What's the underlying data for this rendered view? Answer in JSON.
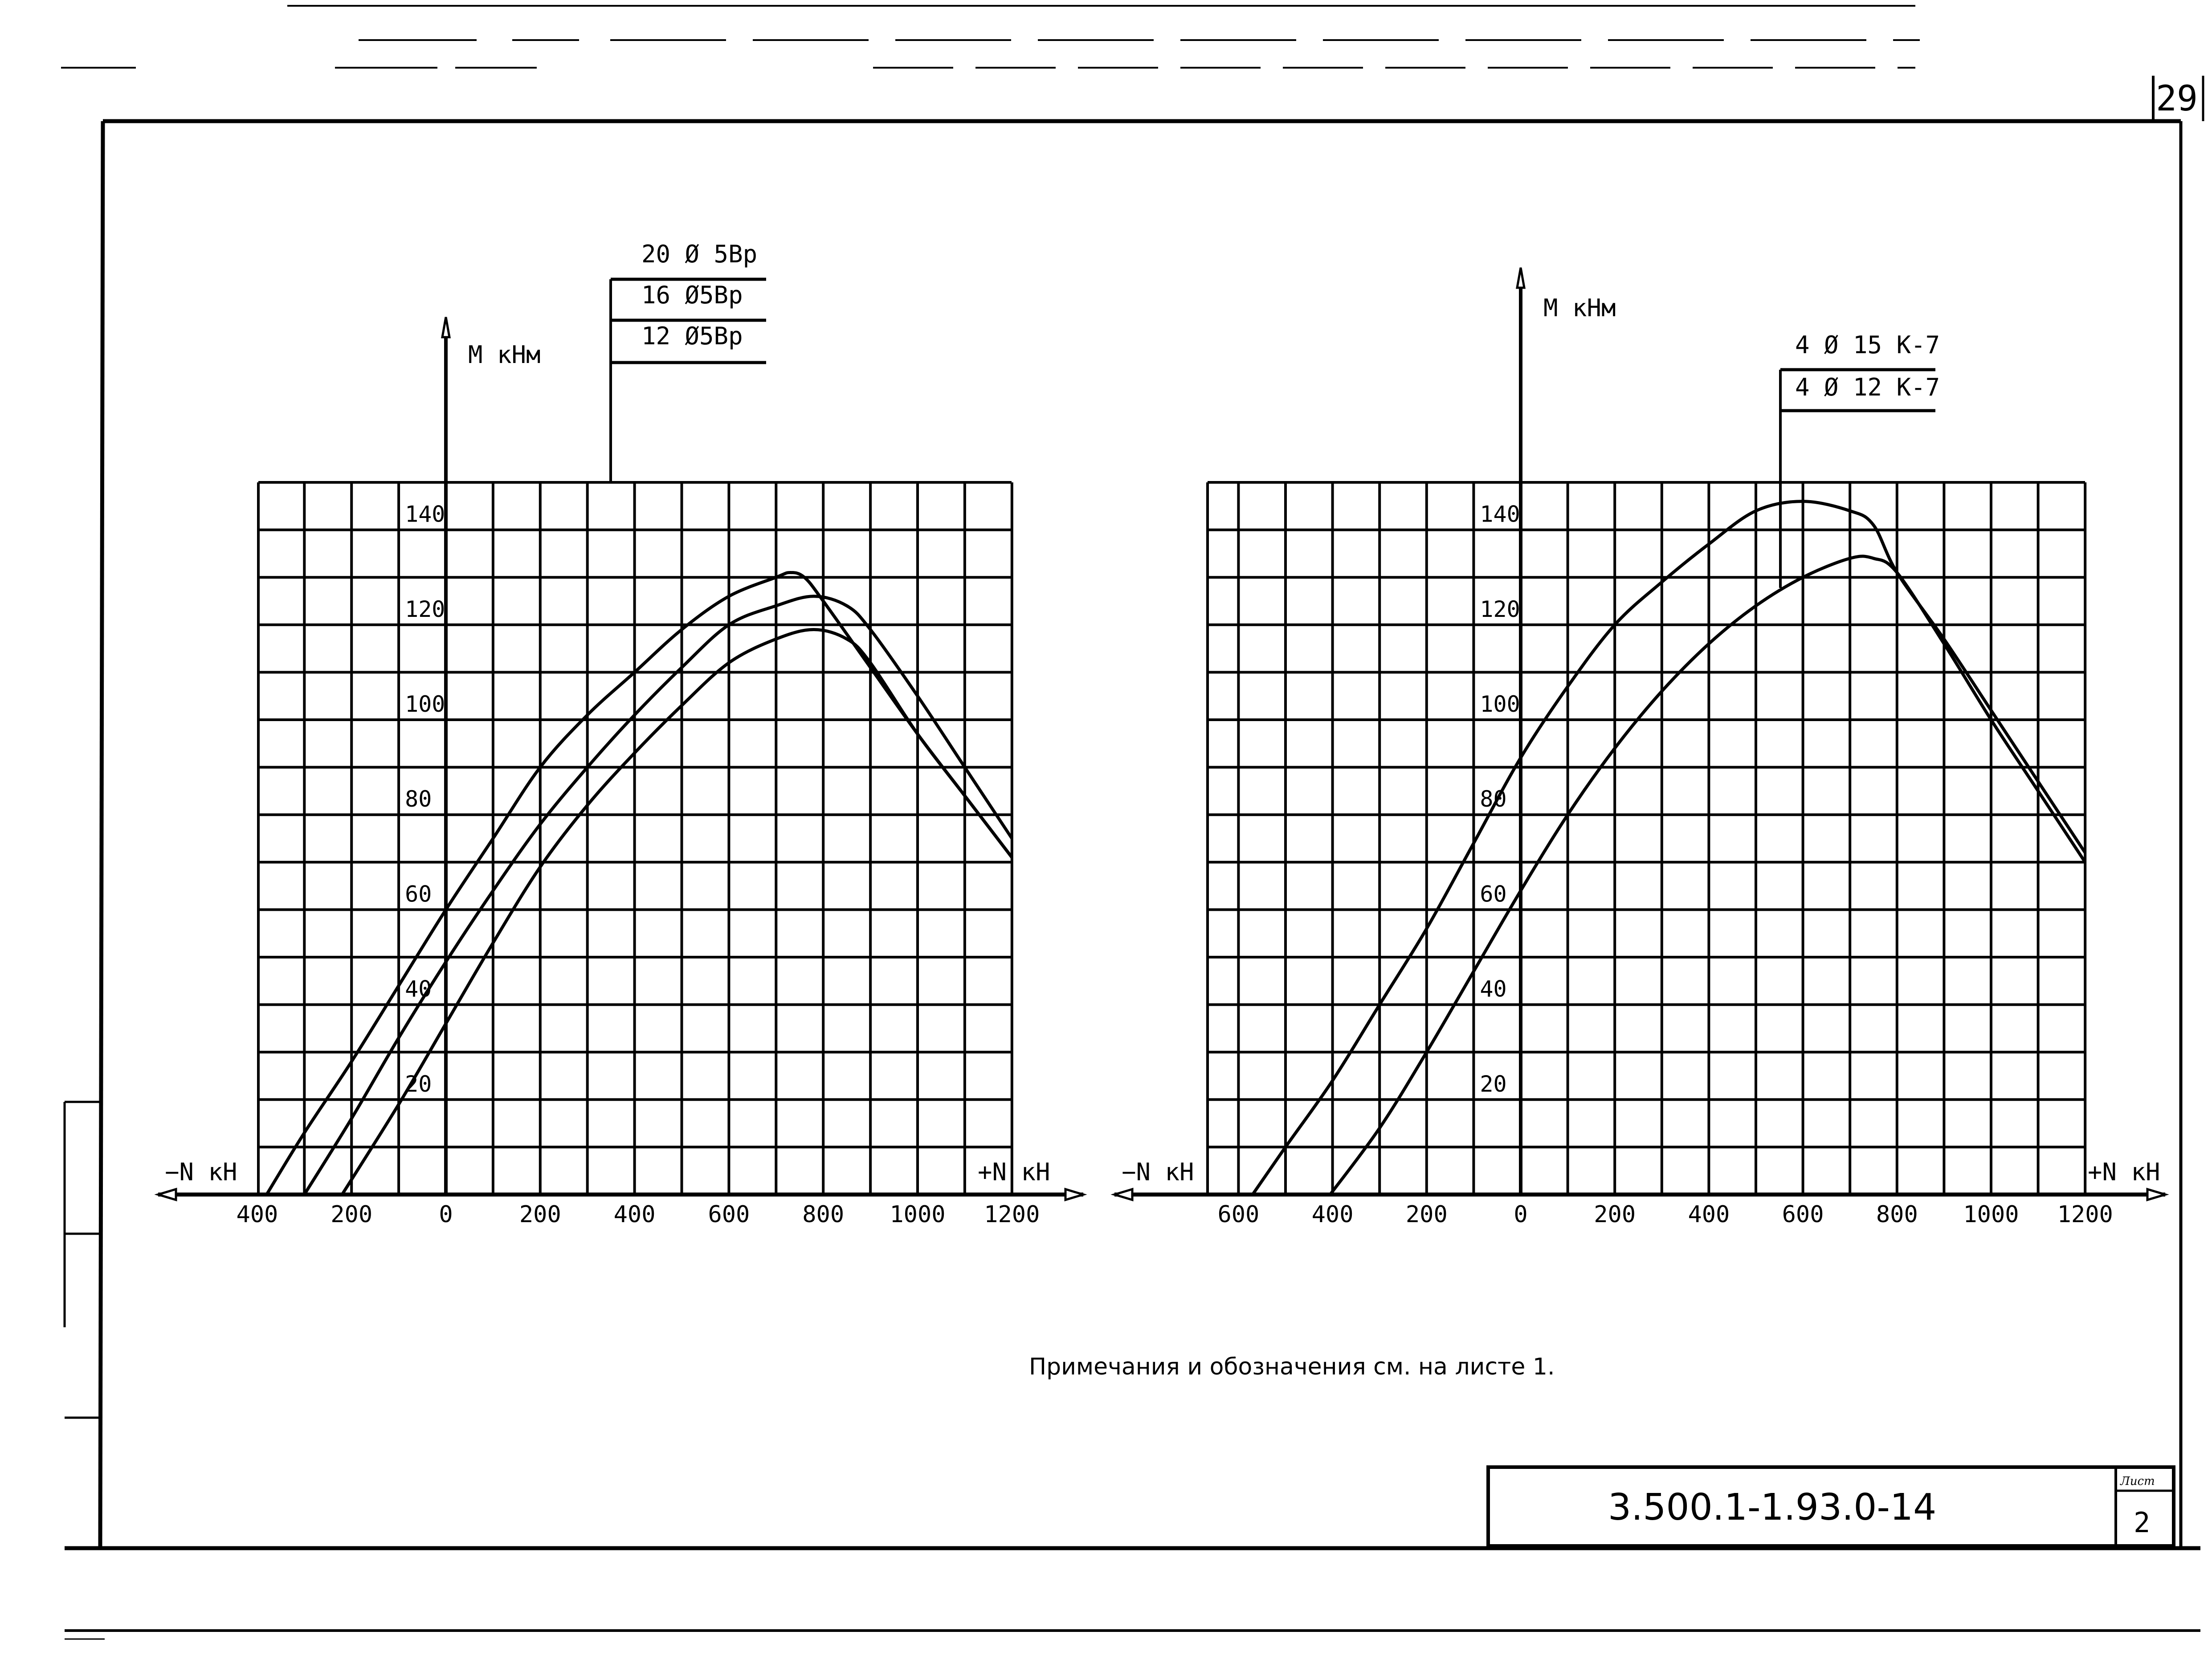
{
  "sheet": {
    "page_number": "29",
    "note": "Примечания и обозначения см. на листе 1.",
    "title_block": {
      "code": "3.500.1-1.93.0-14",
      "sheet_label": "Лист",
      "sheet_value": "2"
    }
  },
  "charts": [
    {
      "id": "left",
      "y_axis_label": "M кНм",
      "x_neg_label": "−N кН",
      "x_pos_label": "+N кН",
      "x_tick_labels": [
        "400",
        "200",
        "0",
        "200",
        "400",
        "600",
        "800",
        "1000",
        "1200"
      ],
      "y_tick_labels": [
        "20",
        "40",
        "60",
        "80",
        "100",
        "120",
        "140"
      ],
      "legend": [
        "20 Ø 5Bp",
        "16 Ø5Bp",
        "12 Ø5Bp"
      ]
    },
    {
      "id": "right",
      "y_axis_label": "M кНм",
      "x_neg_label": "−N кН",
      "x_pos_label": "+N кН",
      "x_tick_labels": [
        "600",
        "400",
        "200",
        "0",
        "200",
        "400",
        "600",
        "800",
        "1000",
        "1200"
      ],
      "y_tick_labels": [
        "20",
        "40",
        "60",
        "80",
        "100",
        "120",
        "140"
      ],
      "legend": [
        "4 Ø 15  K-7",
        "4 Ø 12  K-7"
      ]
    }
  ],
  "chart_data": [
    {
      "type": "line",
      "title": "",
      "xlabel": "N, кН (−N left, +N right)",
      "ylabel": "M, кНм",
      "xlim": [
        -400,
        1200
      ],
      "ylim": [
        0,
        150
      ],
      "x_ticks": [
        -400,
        -200,
        0,
        200,
        400,
        600,
        800,
        1000,
        1200
      ],
      "y_ticks": [
        20,
        40,
        60,
        80,
        100,
        120,
        140
      ],
      "grid": true,
      "grid_step": {
        "x": 100,
        "y": 10
      },
      "legend_position": "top (leader labels)",
      "series": [
        {
          "name": "20 Ø 5Bp",
          "points": [
            [
              -380,
              0
            ],
            [
              -300,
              13
            ],
            [
              -200,
              28
            ],
            [
              -100,
              44
            ],
            [
              0,
              60
            ],
            [
              100,
              75
            ],
            [
              200,
              90
            ],
            [
              300,
              101
            ],
            [
              400,
              110
            ],
            [
              500,
              119
            ],
            [
              600,
              126
            ],
            [
              700,
              130
            ],
            [
              730,
              131
            ],
            [
              760,
              130
            ],
            [
              800,
              125
            ],
            [
              900,
              111
            ],
            [
              1000,
              97
            ],
            [
              1100,
              84
            ],
            [
              1200,
              71
            ]
          ]
        },
        {
          "name": "16 Ø5Bp",
          "points": [
            [
              -300,
              0
            ],
            [
              -200,
              16
            ],
            [
              -100,
              33
            ],
            [
              0,
              49
            ],
            [
              100,
              64
            ],
            [
              200,
              78
            ],
            [
              300,
              90
            ],
            [
              400,
              101
            ],
            [
              500,
              111
            ],
            [
              600,
              120
            ],
            [
              700,
              124
            ],
            [
              780,
              126
            ],
            [
              850,
              124
            ],
            [
              900,
              119
            ],
            [
              1000,
              105
            ],
            [
              1100,
              90
            ],
            [
              1200,
              75
            ]
          ]
        },
        {
          "name": "12 Ø5Bp",
          "points": [
            [
              -220,
              0
            ],
            [
              -100,
              19
            ],
            [
              0,
              36
            ],
            [
              100,
              53
            ],
            [
              200,
              69
            ],
            [
              300,
              82
            ],
            [
              400,
              93
            ],
            [
              500,
              103
            ],
            [
              600,
              112
            ],
            [
              700,
              117
            ],
            [
              780,
              119
            ],
            [
              850,
              117
            ],
            [
              900,
              112
            ],
            [
              1000,
              97
            ],
            [
              1100,
              84
            ],
            [
              1200,
              71
            ]
          ]
        }
      ]
    },
    {
      "type": "line",
      "title": "",
      "xlabel": "N, кН (−N left, +N right)",
      "ylabel": "M, кНм",
      "xlim": [
        -666,
        1200
      ],
      "ylim": [
        0,
        150
      ],
      "x_ticks": [
        -600,
        -400,
        -200,
        0,
        200,
        400,
        600,
        800,
        1000,
        1200
      ],
      "y_ticks": [
        20,
        40,
        60,
        80,
        100,
        120,
        140
      ],
      "grid": true,
      "grid_step": {
        "x": 100,
        "y": 10
      },
      "legend_position": "top (leader labels)",
      "series": [
        {
          "name": "4 Ø 15 K-7",
          "points": [
            [
              -570,
              0
            ],
            [
              -500,
              10
            ],
            [
              -400,
              24
            ],
            [
              -300,
              40
            ],
            [
              -200,
              56
            ],
            [
              -100,
              74
            ],
            [
              0,
              92
            ],
            [
              100,
              107
            ],
            [
              200,
              120
            ],
            [
              300,
              129
            ],
            [
              400,
              137
            ],
            [
              500,
              144
            ],
            [
              600,
              146
            ],
            [
              700,
              144
            ],
            [
              750,
              141
            ],
            [
              800,
              131
            ],
            [
              900,
              117
            ],
            [
              1000,
              102
            ],
            [
              1100,
              87
            ],
            [
              1200,
              72
            ]
          ]
        },
        {
          "name": "4 Ø 12 K-7",
          "points": [
            [
              -405,
              0
            ],
            [
              -300,
              14
            ],
            [
              -200,
              30
            ],
            [
              -100,
              47
            ],
            [
              0,
              64
            ],
            [
              100,
              80
            ],
            [
              200,
              94
            ],
            [
              300,
              106
            ],
            [
              400,
              116
            ],
            [
              500,
              124
            ],
            [
              600,
              130
            ],
            [
              700,
              134
            ],
            [
              750,
              134
            ],
            [
              800,
              131
            ],
            [
              900,
              116
            ],
            [
              1000,
              100
            ],
            [
              1100,
              85
            ],
            [
              1200,
              70
            ]
          ]
        }
      ]
    }
  ]
}
